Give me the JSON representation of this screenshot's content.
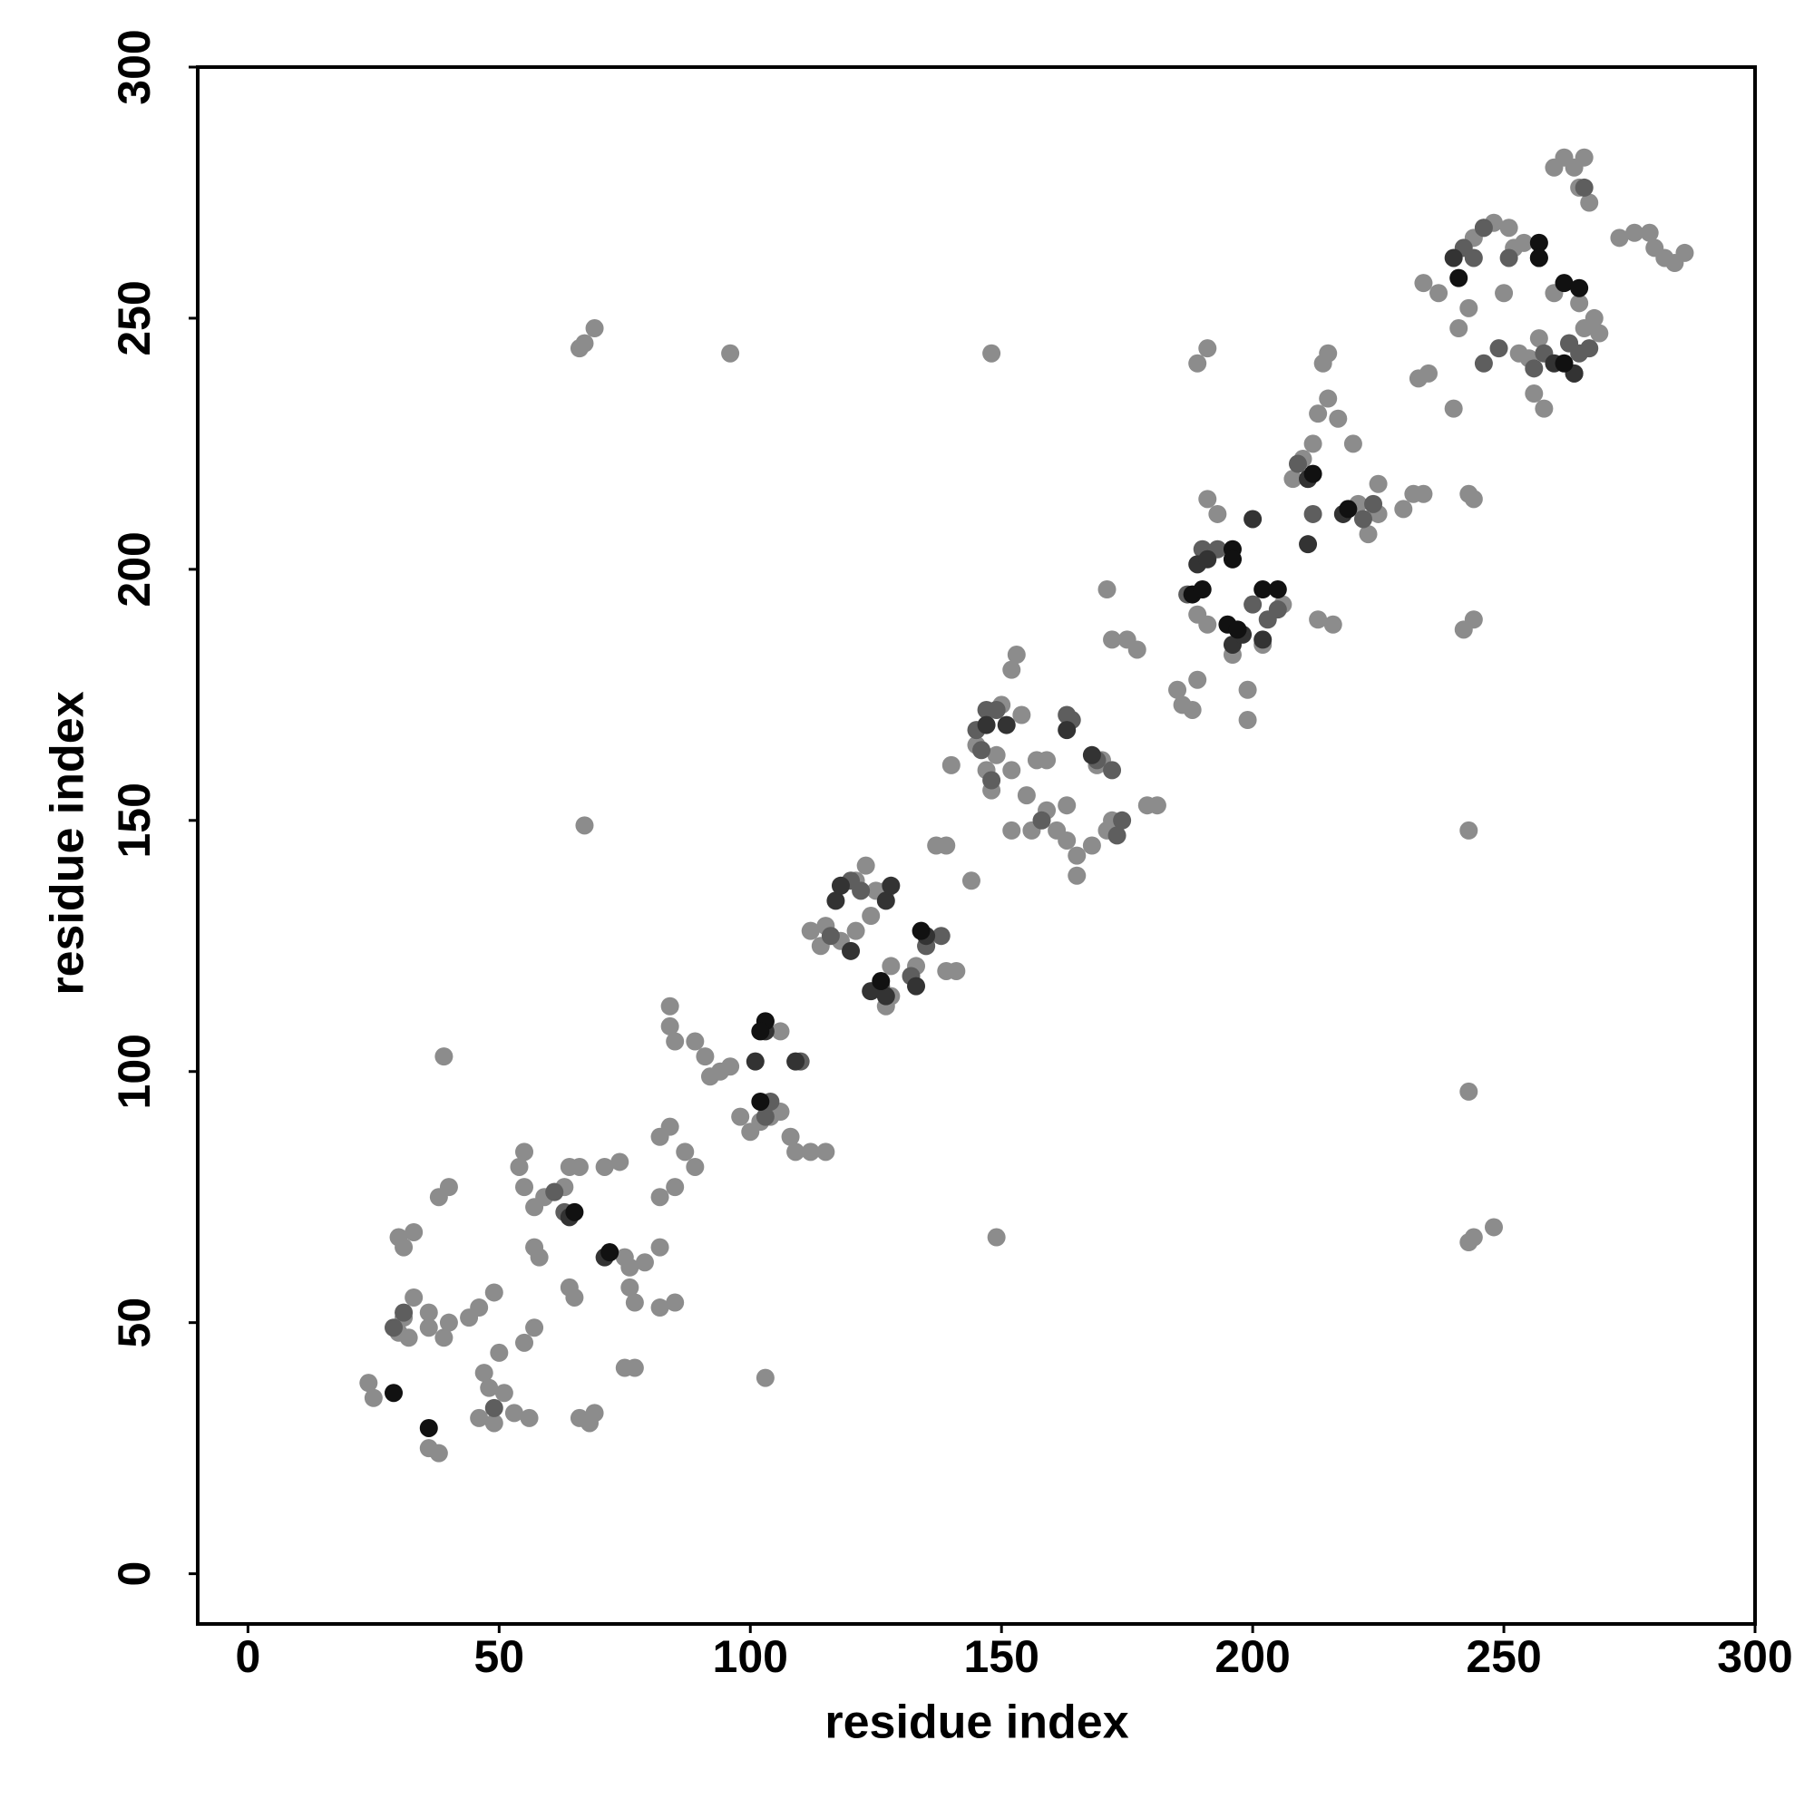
{
  "chart_data": {
    "type": "scatter",
    "x_label": "residue index",
    "y_label": "residue index",
    "xlim": [
      -10,
      300
    ],
    "ylim": [
      -10,
      300
    ],
    "xticks": [
      0,
      50,
      100,
      150,
      200,
      250,
      300
    ],
    "yticks": [
      0,
      50,
      100,
      150,
      200,
      250,
      300
    ],
    "series": [
      {
        "color": "#8c8c8c",
        "x": [
          66,
          67,
          69,
          96,
          148,
          39,
          67,
          149,
          103,
          243,
          243,
          243,
          244,
          248,
          189,
          191,
          214,
          215,
          244,
          243,
          242,
          244,
          24,
          25,
          30,
          31,
          32,
          33,
          30,
          31,
          33,
          36,
          36,
          39,
          40,
          38,
          40,
          38,
          36,
          44,
          46,
          49,
          47,
          48,
          46,
          49,
          51,
          53,
          55,
          50,
          56,
          57,
          54,
          55,
          55,
          57,
          59,
          61,
          63,
          64,
          66,
          57,
          58,
          64,
          65,
          66,
          68,
          69,
          71,
          74,
          75,
          76,
          76,
          77,
          79,
          75,
          77,
          82,
          82,
          82,
          85,
          84,
          82,
          87,
          89,
          85,
          84,
          84,
          85,
          89,
          91,
          92,
          94,
          96,
          98,
          100,
          102,
          104,
          106,
          108,
          109,
          112,
          106,
          115,
          112,
          114,
          115,
          118,
          121,
          121,
          124,
          125,
          123,
          127,
          128,
          128,
          127,
          133,
          135,
          139,
          141,
          137,
          139,
          140,
          144,
          145,
          147,
          148,
          149,
          150,
          152,
          153,
          152,
          154,
          155,
          157,
          159,
          152,
          156,
          159,
          161,
          163,
          163,
          165,
          165,
          168,
          169,
          172,
          171,
          179,
          181,
          170,
          171,
          172,
          175,
          177,
          185,
          186,
          188,
          189,
          189,
          191,
          191,
          193,
          196,
          199,
          199,
          202,
          206,
          208,
          210,
          212,
          213,
          215,
          217,
          220,
          213,
          216,
          219,
          221,
          223,
          225,
          225,
          230,
          232,
          234,
          233,
          235,
          234,
          237,
          240,
          241,
          243,
          244,
          246,
          248,
          251,
          250,
          252,
          253,
          255,
          257,
          256,
          258,
          260,
          263,
          266,
          265,
          268,
          269,
          260,
          262,
          264,
          266,
          265,
          267,
          273,
          276,
          279,
          280,
          282,
          284,
          286,
          254,
          257
        ],
        "y": [
          244,
          245,
          248,
          243,
          243,
          103,
          149,
          67,
          39,
          96,
          148,
          66,
          67,
          69,
          241,
          244,
          241,
          243,
          214,
          215,
          188,
          190,
          38,
          35,
          48,
          51,
          47,
          55,
          67,
          65,
          68,
          52,
          49,
          47,
          50,
          75,
          77,
          24,
          25,
          51,
          53,
          56,
          40,
          37,
          31,
          30,
          36,
          32,
          46,
          44,
          31,
          49,
          81,
          84,
          77,
          73,
          75,
          76,
          77,
          81,
          81,
          65,
          63,
          57,
          55,
          31,
          30,
          32,
          81,
          82,
          63,
          61,
          57,
          54,
          62,
          41,
          41,
          65,
          53,
          75,
          54,
          89,
          87,
          84,
          81,
          77,
          113,
          109,
          106,
          106,
          103,
          99,
          100,
          101,
          91,
          88,
          90,
          91,
          92,
          87,
          84,
          84,
          108,
          84,
          128,
          125,
          129,
          126,
          128,
          138,
          131,
          136,
          141,
          136,
          121,
          115,
          113,
          121,
          125,
          120,
          120,
          145,
          145,
          161,
          138,
          165,
          160,
          156,
          163,
          173,
          160,
          183,
          180,
          171,
          155,
          162,
          162,
          148,
          148,
          152,
          148,
          153,
          146,
          143,
          139,
          145,
          161,
          150,
          148,
          153,
          153,
          162,
          196,
          186,
          186,
          184,
          176,
          173,
          172,
          178,
          191,
          189,
          214,
          211,
          183,
          176,
          170,
          185,
          193,
          218,
          222,
          225,
          231,
          234,
          230,
          225,
          190,
          189,
          212,
          213,
          207,
          211,
          217,
          212,
          215,
          215,
          238,
          239,
          257,
          255,
          232,
          248,
          252,
          266,
          268,
          269,
          268,
          255,
          264,
          243,
          242,
          246,
          235,
          232,
          255,
          245,
          248,
          253,
          250,
          247,
          280,
          282,
          280,
          282,
          276,
          273,
          266,
          267,
          267,
          264,
          262,
          261,
          263,
          265,
          265
        ]
      },
      {
        "color": "#5e5e5e",
        "x": [
          29,
          31,
          49,
          61,
          63,
          103,
          104,
          103,
          110,
          116,
          120,
          122,
          126,
          132,
          135,
          138,
          145,
          147,
          149,
          146,
          148,
          158,
          163,
          164,
          169,
          172,
          173,
          174,
          187,
          190,
          193,
          196,
          200,
          203,
          205,
          209,
          212,
          211,
          222,
          224,
          242,
          244,
          246,
          251,
          256,
          258,
          263,
          264,
          265,
          267,
          266,
          246,
          249
        ],
        "y": [
          49,
          52,
          33,
          76,
          72,
          110,
          94,
          91,
          102,
          127,
          138,
          136,
          117,
          119,
          125,
          127,
          168,
          172,
          172,
          164,
          158,
          150,
          171,
          170,
          162,
          160,
          147,
          150,
          195,
          204,
          204,
          202,
          193,
          190,
          192,
          221,
          211,
          218,
          210,
          213,
          264,
          262,
          268,
          262,
          240,
          243,
          245,
          239,
          243,
          244,
          276,
          241,
          244
        ]
      },
      {
        "color": "#333333",
        "x": [
          64,
          71,
          72,
          101,
          103,
          109,
          117,
          118,
          120,
          124,
          127,
          127,
          128,
          133,
          135,
          147,
          151,
          163,
          168,
          189,
          191,
          196,
          198,
          202,
          211,
          218,
          240,
          257,
          260,
          264,
          200,
          211
        ],
        "y": [
          71,
          63,
          64,
          102,
          108,
          102,
          134,
          137,
          124,
          116,
          115,
          134,
          137,
          117,
          127,
          169,
          169,
          168,
          163,
          201,
          202,
          185,
          187,
          186,
          218,
          211,
          262,
          262,
          241,
          239,
          210,
          205
        ]
      },
      {
        "color": "#111111",
        "x": [
          29,
          36,
          65,
          72,
          102,
          103,
          102,
          126,
          134,
          188,
          190,
          195,
          197,
          202,
          205,
          196,
          196,
          212,
          219,
          257,
          257,
          262,
          265,
          262,
          241
        ],
        "y": [
          36,
          29,
          72,
          64,
          94,
          110,
          108,
          118,
          128,
          195,
          196,
          189,
          188,
          196,
          196,
          204,
          202,
          219,
          212,
          265,
          262,
          257,
          256,
          241,
          258
        ]
      }
    ]
  }
}
